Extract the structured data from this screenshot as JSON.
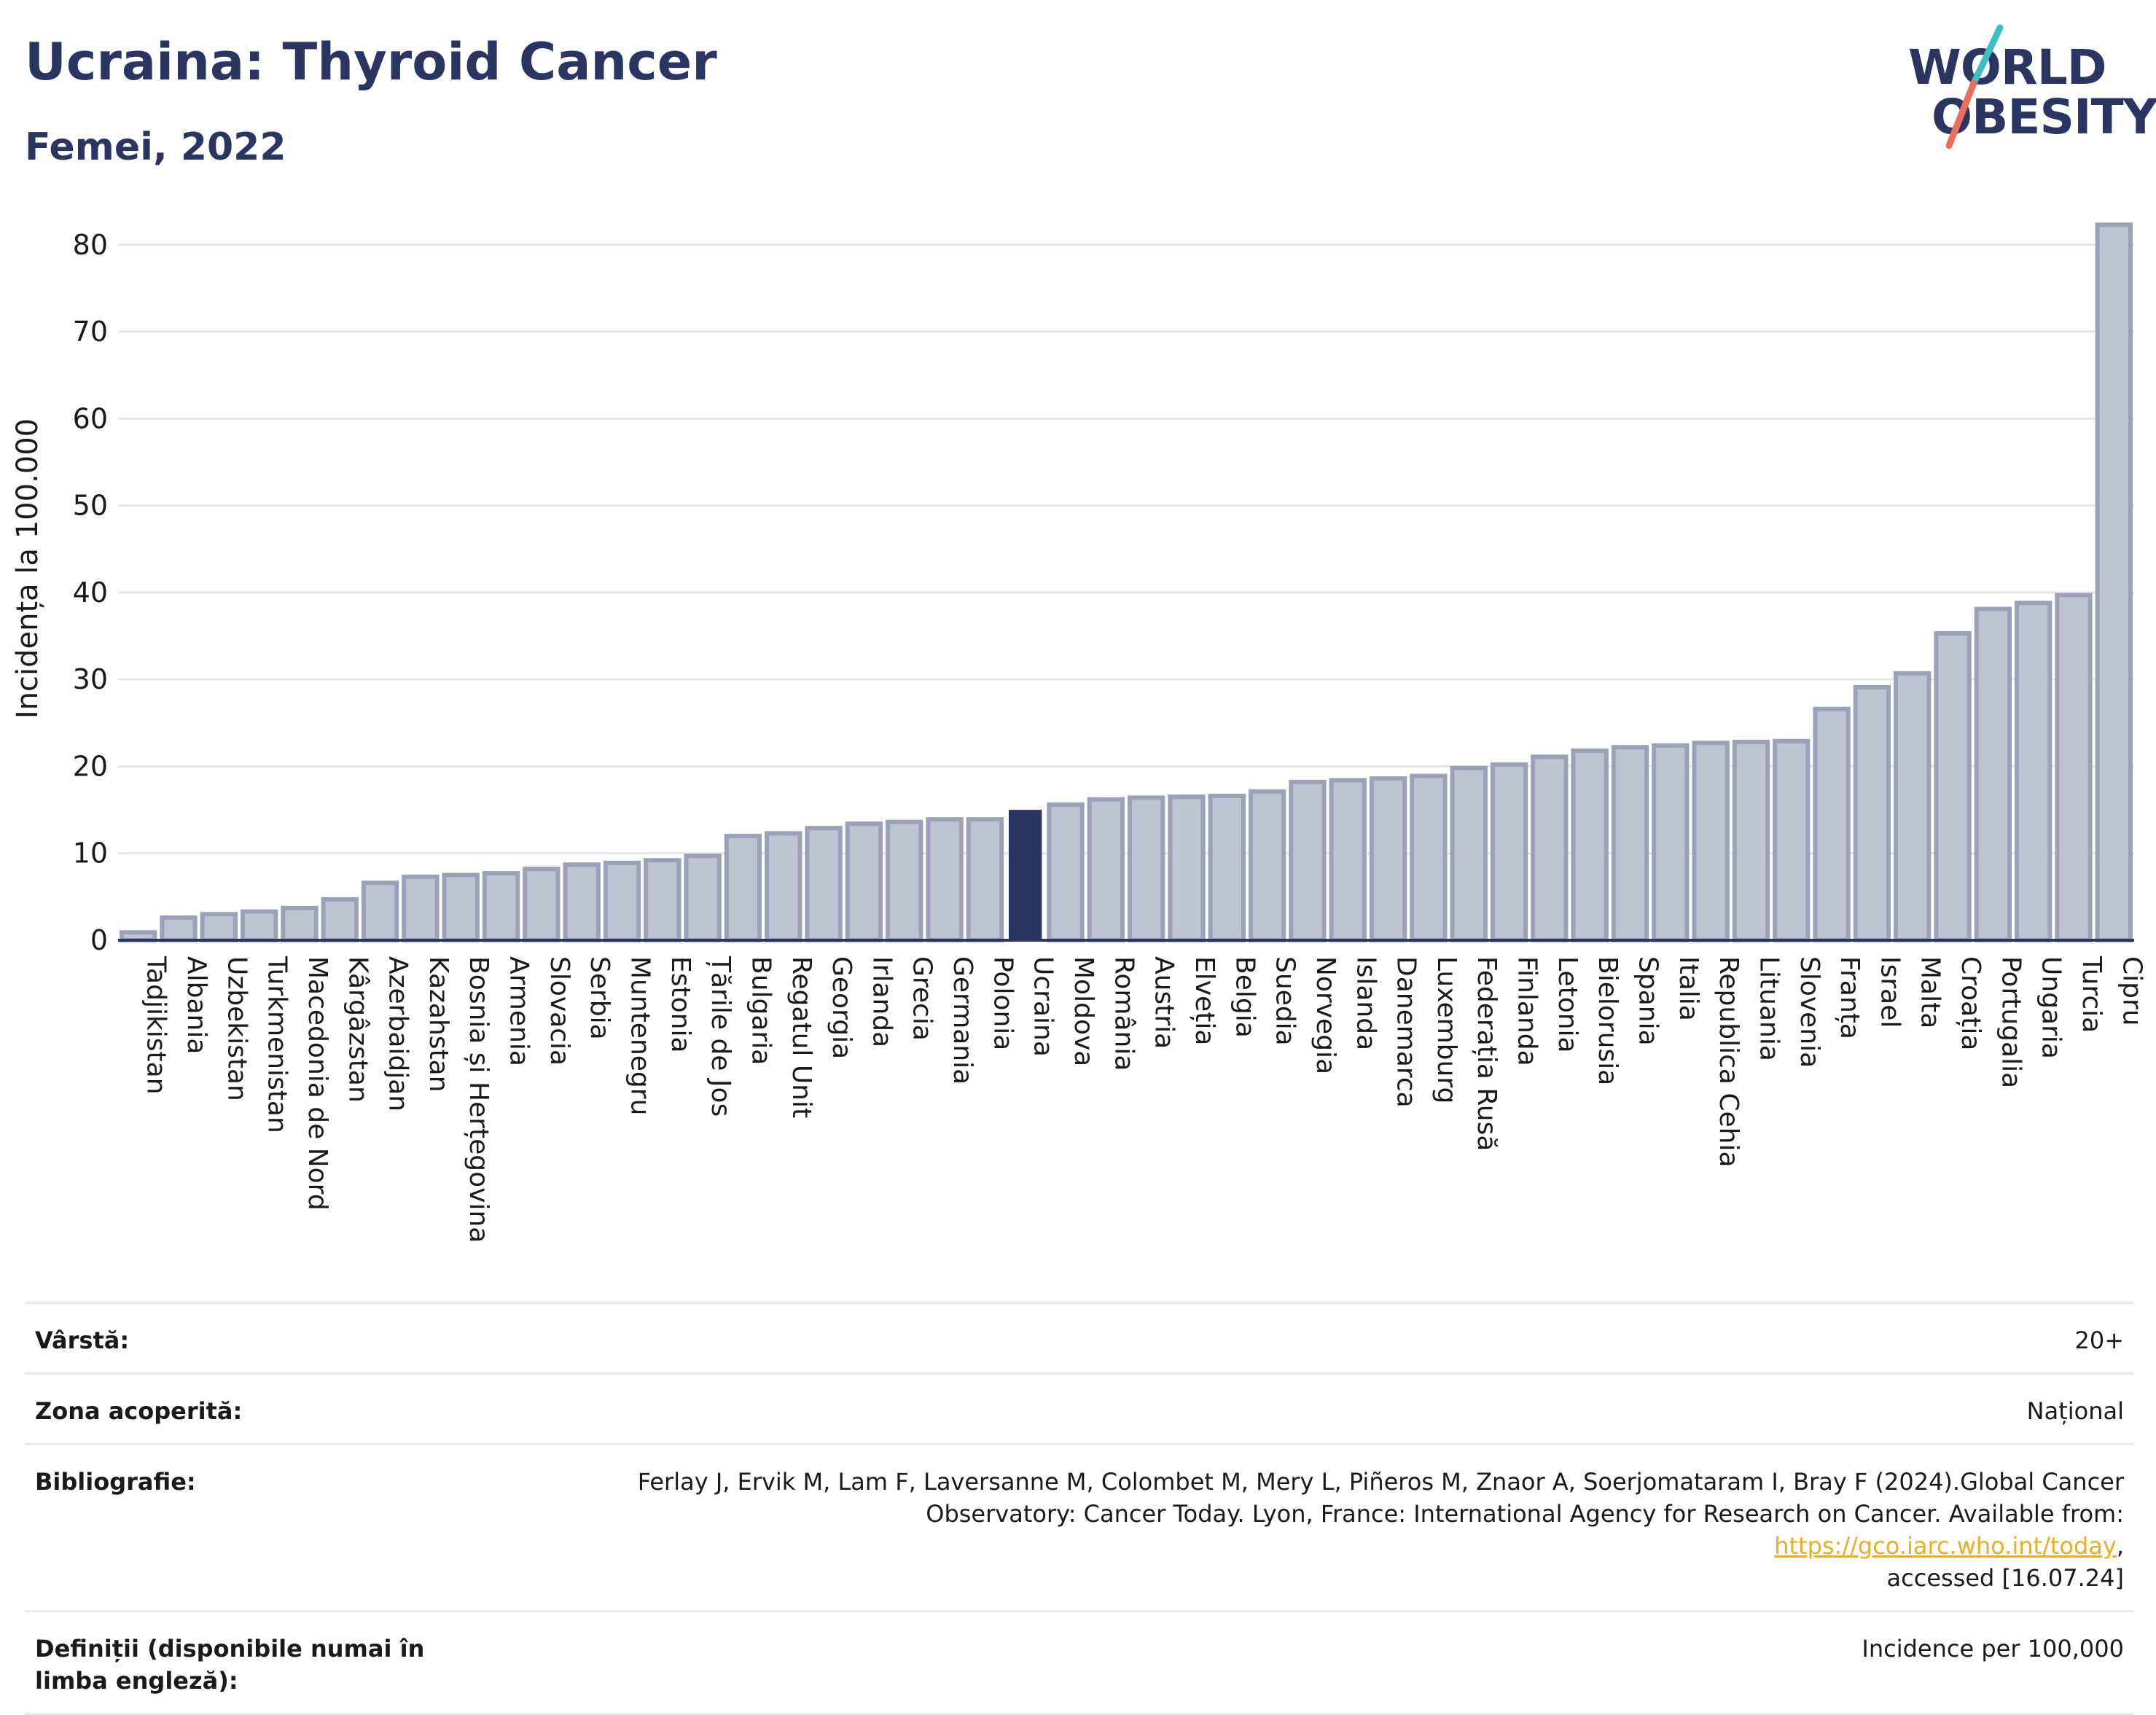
{
  "header": {
    "title": "Ucraina: Thyroid Cancer",
    "subtitle": "Femei, 2022"
  },
  "logo": {
    "line1": "WORLD",
    "line2": "OBESITY",
    "colors": {
      "text": "#2b3561",
      "slash_top": "#3dbdc4",
      "slash_bottom": "#e8705a"
    }
  },
  "chart_data": {
    "type": "bar",
    "ylabel": "Incidența la 100.000",
    "ylim": [
      0,
      83
    ],
    "yticks": [
      0,
      10,
      20,
      30,
      40,
      50,
      60,
      70,
      80
    ],
    "grid": true,
    "highlight": "Ucraina",
    "colors": {
      "bar": "#bfc3d2",
      "bar_edge": "#9ba1b9",
      "highlight": "#2b3561",
      "grid": "#e6e6ea",
      "axis": "#2b3561"
    },
    "categories": [
      "Tadjikistan",
      "Albania",
      "Uzbekistan",
      "Turkmenistan",
      "Macedonia de Nord",
      "Kârgâzstan",
      "Azerbaidjan",
      "Kazahstan",
      "Bosnia și Herțegovina",
      "Armenia",
      "Slovacia",
      "Serbia",
      "Muntenegru",
      "Estonia",
      "Țările de Jos",
      "Bulgaria",
      "Regatul Unit",
      "Georgia",
      "Irlanda",
      "Grecia",
      "Germania",
      "Polonia",
      "Ucraina",
      "Moldova",
      "România",
      "Austria",
      "Elveția",
      "Belgia",
      "Suedia",
      "Norvegia",
      "Islanda",
      "Danemarca",
      "Luxemburg",
      "Federația Rusă",
      "Finlanda",
      "Letonia",
      "Bielorusia",
      "Spania",
      "Italia",
      "Republica Cehia",
      "Lituania",
      "Slovenia",
      "Franța",
      "Israel",
      "Malta",
      "Croația",
      "Portugalia",
      "Ungaria",
      "Turcia",
      "Cipru"
    ],
    "values": [
      0.9,
      2.6,
      3.0,
      3.3,
      3.7,
      4.7,
      6.6,
      7.3,
      7.5,
      7.7,
      8.2,
      8.7,
      8.9,
      9.2,
      9.7,
      12.0,
      12.3,
      12.9,
      13.4,
      13.6,
      13.9,
      13.9,
      15.0,
      15.6,
      16.2,
      16.4,
      16.5,
      16.6,
      17.1,
      18.2,
      18.4,
      18.6,
      18.9,
      19.8,
      20.2,
      21.1,
      21.8,
      22.2,
      22.4,
      22.7,
      22.8,
      22.9,
      26.6,
      29.1,
      30.7,
      35.3,
      38.1,
      38.8,
      39.7,
      82.3
    ]
  },
  "info": {
    "rows": [
      {
        "label": "Vârstă:",
        "value": "20+"
      },
      {
        "label": "Zona acoperită:",
        "value": "Național"
      },
      {
        "label": "Bibliografie:",
        "value_line1": "Ferlay J, Ervik M, Lam F, Laversanne M, Colombet M, Mery L, Piñeros M, Znaor A, Soerjomataram I, Bray F (2024).Global Cancer",
        "value_line2_pre": "Observatory: Cancer Today. Lyon, France: International Agency for Research on Cancer. Available from: ",
        "link": "https://gco.iarc.who.int/today",
        "value_line2_post": ",",
        "value_line3": "accessed [16.07.24]"
      },
      {
        "label": "Definiții (disponibile numai în limba engleză):",
        "value": "Incidence per 100,000"
      }
    ]
  }
}
